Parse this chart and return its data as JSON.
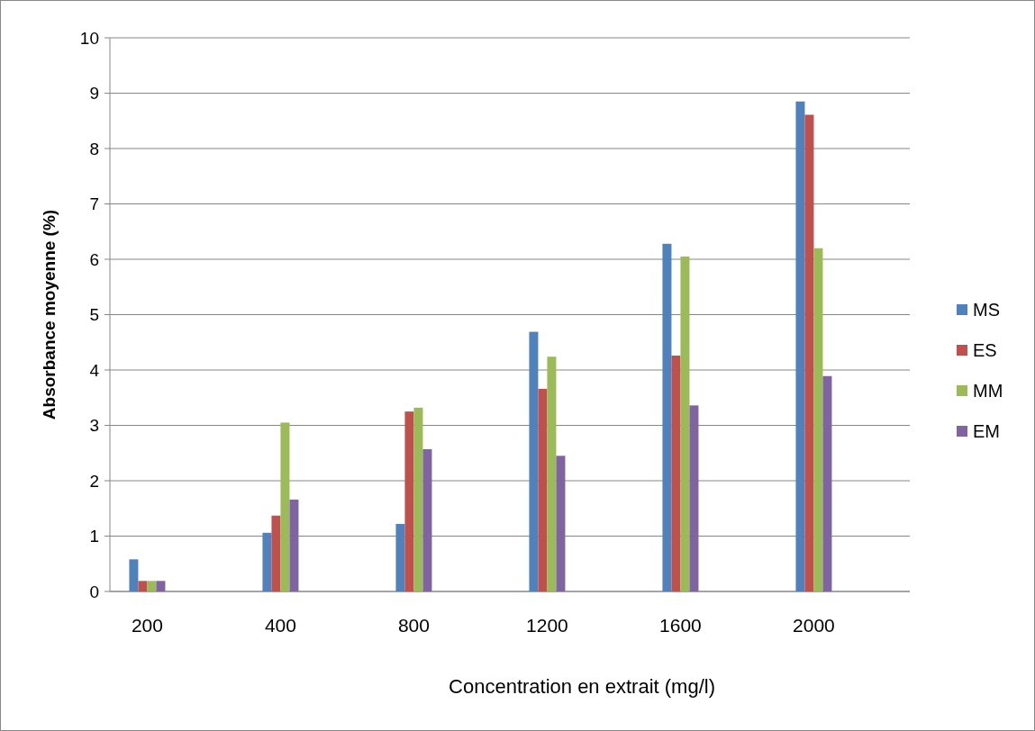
{
  "chart_data": {
    "type": "bar",
    "xlabel": "Concentration en extrait (mg/l)",
    "ylabel": "Absorbance moyenne (%)",
    "categories": [
      "200",
      "400",
      "800",
      "1200",
      "1600",
      "2000"
    ],
    "series": [
      {
        "name": "MS",
        "color": "#4f81bd",
        "values": [
          0.58,
          1.06,
          1.22,
          4.69,
          6.28,
          8.85
        ]
      },
      {
        "name": "ES",
        "color": "#c0504d",
        "values": [
          0.19,
          1.37,
          3.25,
          3.66,
          4.26,
          8.61
        ]
      },
      {
        "name": "MM",
        "color": "#9bbb59",
        "values": [
          0.19,
          3.05,
          3.32,
          4.24,
          6.05,
          6.2
        ]
      },
      {
        "name": "EM",
        "color": "#8064a2",
        "values": [
          0.19,
          1.66,
          2.57,
          2.45,
          3.36,
          3.89
        ]
      }
    ],
    "ylim": [
      0,
      10
    ],
    "yticks": [
      0,
      1,
      2,
      3,
      4,
      5,
      6,
      7,
      8,
      9,
      10
    ],
    "grid": "y",
    "legend": "right"
  }
}
